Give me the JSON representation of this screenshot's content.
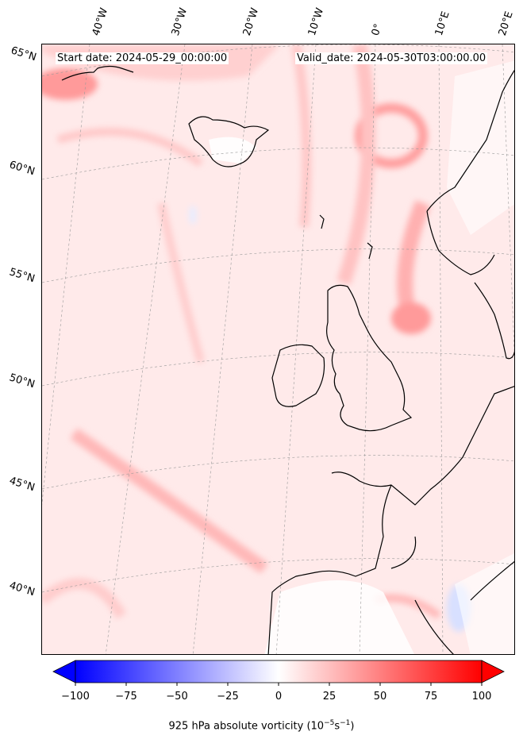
{
  "header": {
    "start_date": "Start date: 2024-05-29_00:00:00",
    "valid_date": "Valid_date: 2024-05-30T03:00:00.00"
  },
  "latitude_labels": [
    "65°N",
    "60°N",
    "55°N",
    "50°N",
    "45°N",
    "40°N"
  ],
  "longitude_labels": [
    "40°W",
    "30°W",
    "20°W",
    "10°W",
    "0°",
    "10°E",
    "20°E"
  ],
  "colorbar": {
    "ticks": [
      "−100",
      "−75",
      "−50",
      "−25",
      "0",
      "25",
      "50",
      "75",
      "100"
    ],
    "range": [
      -100,
      100
    ],
    "label": "925 hPa absolute vorticity (10",
    "label_exp1": "−5",
    "label_mid": "s",
    "label_exp2": "−1",
    "label_end": ")",
    "colormap": "bwr",
    "extend": "both"
  },
  "colors": {
    "background_field": "#ffeaea",
    "land_white": "#ffffff",
    "strong_positive": "#ff3a3a",
    "negative": "#c8d4ff"
  }
}
